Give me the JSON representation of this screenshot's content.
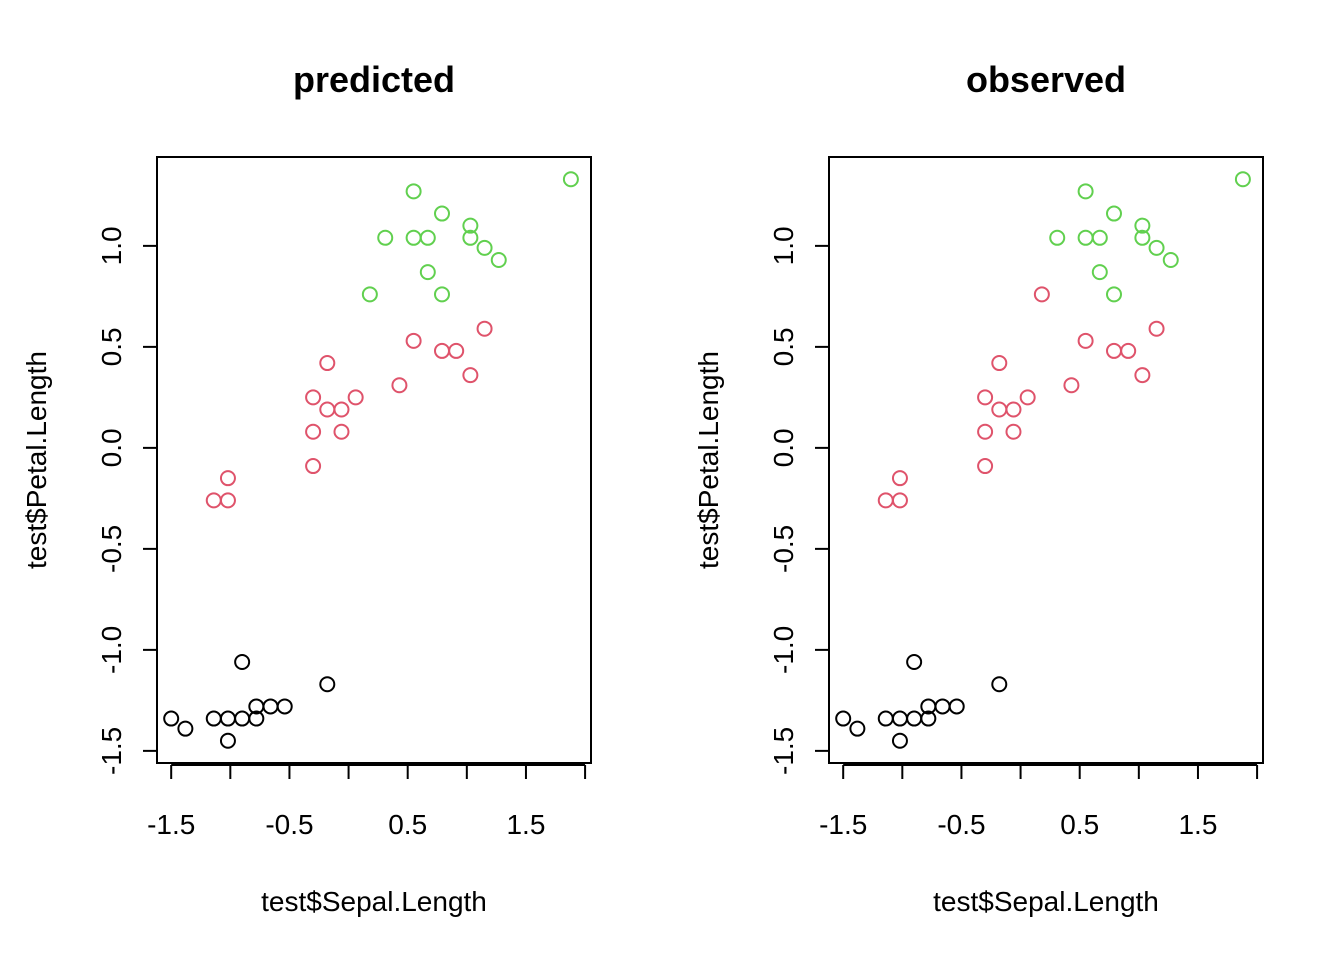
{
  "chart_data": [
    {
      "type": "scatter",
      "title": "predicted",
      "xlabel": "test$Sepal.Length",
      "ylabel": "test$Petal.Length",
      "xlim": [
        -1.62,
        2.05
      ],
      "ylim": [
        -1.56,
        1.44
      ],
      "xticks": [
        -1.5,
        -1.0,
        -0.5,
        0.0,
        0.5,
        1.0,
        1.5,
        2.0
      ],
      "xtick_labels": [
        "-1.5",
        "",
        "-0.5",
        "",
        "0.5",
        "",
        "1.5",
        ""
      ],
      "yticks": [
        -1.5,
        -1.0,
        -0.5,
        0.0,
        0.5,
        1.0
      ],
      "ytick_labels": [
        "-1.5",
        "-1.0",
        "-0.5",
        "0.0",
        "0.5",
        "1.0"
      ],
      "marker": "open-circle",
      "series": [
        {
          "color": "#000000",
          "points": [
            [
              -1.5,
              -1.34
            ],
            [
              -1.38,
              -1.39
            ],
            [
              -1.14,
              -1.34
            ],
            [
              -1.02,
              -1.34
            ],
            [
              -1.02,
              -1.45
            ],
            [
              -0.9,
              -1.06
            ],
            [
              -0.9,
              -1.34
            ],
            [
              -0.78,
              -1.28
            ],
            [
              -0.78,
              -1.34
            ],
            [
              -0.66,
              -1.28
            ],
            [
              -0.54,
              -1.28
            ],
            [
              -0.18,
              -1.17
            ]
          ]
        },
        {
          "color": "#DF536B",
          "points": [
            [
              -1.14,
              -0.26
            ],
            [
              -1.02,
              -0.26
            ],
            [
              -1.02,
              -0.15
            ],
            [
              -0.3,
              0.25
            ],
            [
              -0.3,
              0.08
            ],
            [
              -0.3,
              -0.09
            ],
            [
              -0.18,
              0.42
            ],
            [
              -0.18,
              0.19
            ],
            [
              -0.06,
              0.19
            ],
            [
              -0.06,
              0.08
            ],
            [
              0.06,
              0.25
            ],
            [
              0.43,
              0.31
            ],
            [
              0.55,
              0.53
            ],
            [
              0.79,
              0.48
            ],
            [
              0.91,
              0.48
            ],
            [
              1.03,
              0.36
            ],
            [
              1.15,
              0.59
            ]
          ]
        },
        {
          "color": "#61D04F",
          "points": [
            [
              0.18,
              0.76
            ],
            [
              0.31,
              1.04
            ],
            [
              0.55,
              1.27
            ],
            [
              0.55,
              1.04
            ],
            [
              0.67,
              1.04
            ],
            [
              0.67,
              0.87
            ],
            [
              0.79,
              1.16
            ],
            [
              0.79,
              0.76
            ],
            [
              1.03,
              1.1
            ],
            [
              1.03,
              1.04
            ],
            [
              1.15,
              0.99
            ],
            [
              1.27,
              0.93
            ],
            [
              1.88,
              1.33
            ]
          ]
        }
      ]
    },
    {
      "type": "scatter",
      "title": "observed",
      "xlabel": "test$Sepal.Length",
      "ylabel": "test$Petal.Length",
      "xlim": [
        -1.62,
        2.05
      ],
      "ylim": [
        -1.56,
        1.44
      ],
      "xticks": [
        -1.5,
        -1.0,
        -0.5,
        0.0,
        0.5,
        1.0,
        1.5,
        2.0
      ],
      "xtick_labels": [
        "-1.5",
        "",
        "-0.5",
        "",
        "0.5",
        "",
        "1.5",
        ""
      ],
      "yticks": [
        -1.5,
        -1.0,
        -0.5,
        0.0,
        0.5,
        1.0
      ],
      "ytick_labels": [
        "-1.5",
        "-1.0",
        "-0.5",
        "0.0",
        "0.5",
        "1.0"
      ],
      "marker": "open-circle",
      "series": [
        {
          "color": "#000000",
          "points": [
            [
              -1.5,
              -1.34
            ],
            [
              -1.38,
              -1.39
            ],
            [
              -1.14,
              -1.34
            ],
            [
              -1.02,
              -1.34
            ],
            [
              -1.02,
              -1.45
            ],
            [
              -0.9,
              -1.06
            ],
            [
              -0.9,
              -1.34
            ],
            [
              -0.78,
              -1.28
            ],
            [
              -0.78,
              -1.34
            ],
            [
              -0.66,
              -1.28
            ],
            [
              -0.54,
              -1.28
            ],
            [
              -0.18,
              -1.17
            ]
          ]
        },
        {
          "color": "#DF536B",
          "points": [
            [
              -1.14,
              -0.26
            ],
            [
              -1.02,
              -0.26
            ],
            [
              -1.02,
              -0.15
            ],
            [
              -0.3,
              0.25
            ],
            [
              -0.3,
              0.08
            ],
            [
              -0.3,
              -0.09
            ],
            [
              -0.18,
              0.42
            ],
            [
              -0.18,
              0.19
            ],
            [
              -0.06,
              0.19
            ],
            [
              -0.06,
              0.08
            ],
            [
              0.06,
              0.25
            ],
            [
              0.18,
              0.76
            ],
            [
              0.43,
              0.31
            ],
            [
              0.55,
              0.53
            ],
            [
              0.79,
              0.48
            ],
            [
              0.91,
              0.48
            ],
            [
              1.03,
              0.36
            ],
            [
              1.15,
              0.59
            ]
          ]
        },
        {
          "color": "#61D04F",
          "points": [
            [
              0.31,
              1.04
            ],
            [
              0.55,
              1.27
            ],
            [
              0.55,
              1.04
            ],
            [
              0.67,
              1.04
            ],
            [
              0.67,
              0.87
            ],
            [
              0.79,
              1.16
            ],
            [
              0.79,
              0.76
            ],
            [
              1.03,
              1.1
            ],
            [
              1.03,
              1.04
            ],
            [
              1.15,
              0.99
            ],
            [
              1.27,
              0.93
            ],
            [
              1.88,
              1.33
            ]
          ]
        }
      ]
    }
  ]
}
